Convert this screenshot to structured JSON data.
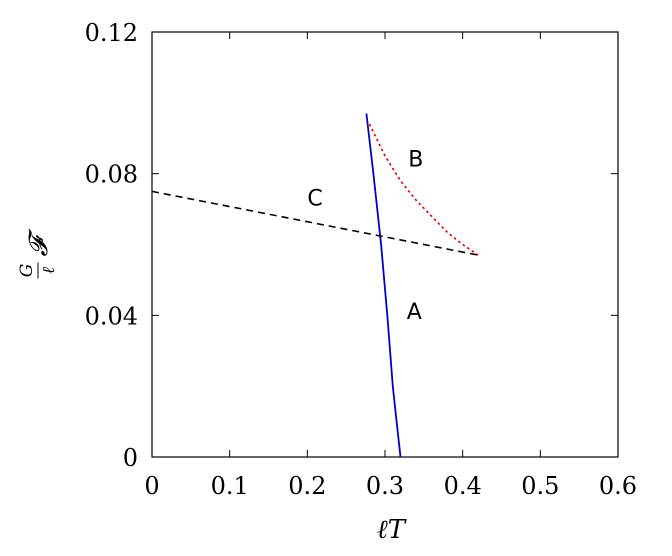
{
  "chart_data": {
    "type": "line",
    "xlim": [
      0,
      0.6
    ],
    "ylim": [
      0,
      0.12
    ],
    "x_ticks": [
      0,
      0.1,
      0.2,
      0.3,
      0.4,
      0.5,
      0.6
    ],
    "y_ticks": [
      0,
      0.04,
      0.08,
      0.12
    ],
    "x_tick_labels": [
      "0",
      "0.1",
      "0.2",
      "0.3",
      "0.4",
      "0.5",
      "0.6"
    ],
    "y_tick_labels": [
      "0",
      "0.04",
      "0.08",
      "0.12"
    ],
    "xlabel": "ℓT",
    "ylabel": "G/ℓ 𝓕",
    "grid": false,
    "series": [
      {
        "name": "A",
        "color": "#0000cc",
        "style": "solid",
        "x": [
          0.276,
          0.285,
          0.295,
          0.303,
          0.31,
          0.315,
          0.32
        ],
        "y": [
          0.097,
          0.08,
          0.06,
          0.04,
          0.02,
          0.01,
          0.0
        ]
      },
      {
        "name": "B",
        "color": "#dd0000",
        "style": "dotted",
        "x": [
          0.28,
          0.3,
          0.32,
          0.34,
          0.36,
          0.38,
          0.4,
          0.42
        ],
        "y": [
          0.094,
          0.085,
          0.078,
          0.0725,
          0.068,
          0.0635,
          0.06,
          0.057
        ]
      },
      {
        "name": "C",
        "color": "#000000",
        "style": "dashed",
        "x": [
          0.0,
          0.42
        ],
        "y": [
          0.075,
          0.057
        ]
      }
    ],
    "annotations": [
      {
        "text": "A",
        "x": 0.328,
        "y": 0.039
      },
      {
        "text": "B",
        "x": 0.33,
        "y": 0.082
      },
      {
        "text": "C",
        "x": 0.2,
        "y": 0.071
      }
    ]
  }
}
